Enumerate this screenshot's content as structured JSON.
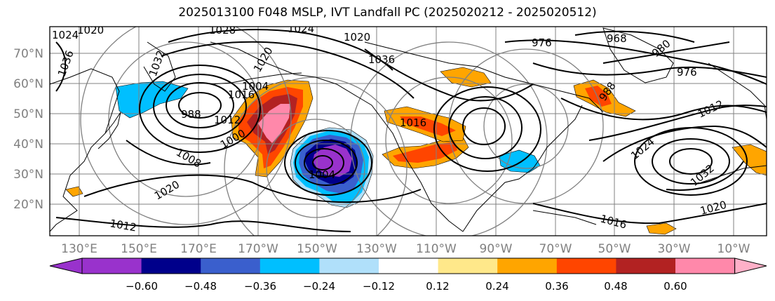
{
  "title": "2025013100 F048 MSLP, IVT Landfall PC (2025020212 - 2025020512)",
  "lat_labels": [
    "70°N",
    "60°N",
    "50°N",
    "40°N",
    "30°N",
    "20°N"
  ],
  "lon_labels": [
    "130°E",
    "150°E",
    "170°E",
    "170°W",
    "150°W",
    "130°W",
    "110°W",
    "90°W",
    "70°W",
    "50°W",
    "30°W",
    "10°W"
  ],
  "isobar_labels": [
    "1024",
    "1020",
    "1036",
    "1028",
    "1024",
    "1020",
    "1036",
    "976",
    "968",
    "980",
    "976",
    "1032",
    "1020",
    "988",
    "1012",
    "1004",
    "1016",
    "1000",
    "1008",
    "1020",
    "1012",
    "1004",
    "1016",
    "1024",
    "1032",
    "1020",
    "1016",
    "988",
    "1012"
  ],
  "colorbar": {
    "tick_labels": [
      "−0.60",
      "−0.48",
      "−0.36",
      "−0.24",
      "−0.12",
      "0.12",
      "0.24",
      "0.36",
      "0.48",
      "0.60"
    ],
    "colors": [
      "#9932cc",
      "#00008b",
      "#3a5fcd",
      "#00bfff",
      "#b0e0fa",
      "#ffffff",
      "#ffe88a",
      "#ffa500",
      "#ff4500",
      "#b22222",
      "#ff88aa",
      "#ffb0c8"
    ]
  }
}
